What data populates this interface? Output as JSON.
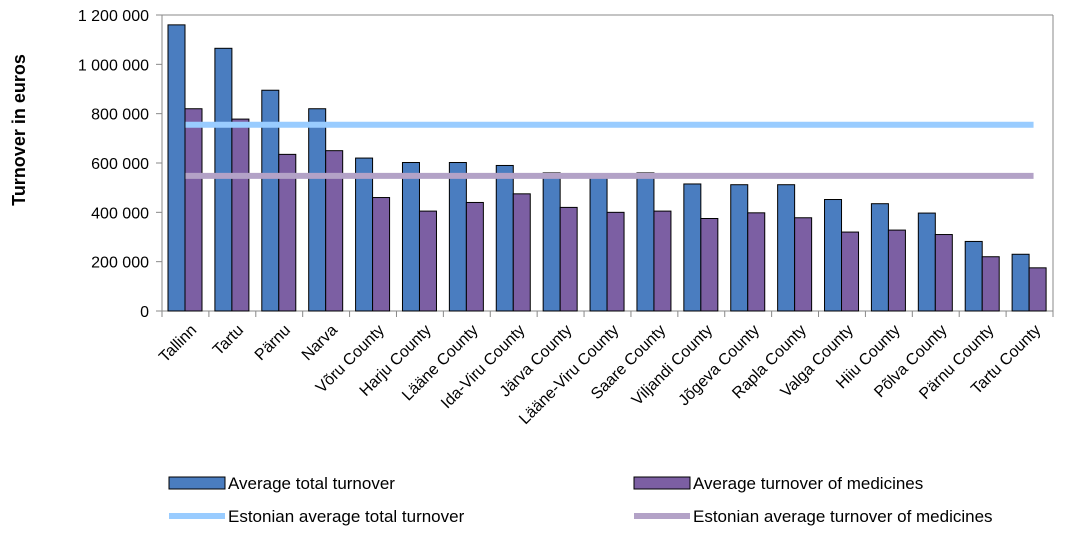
{
  "chart_data": {
    "type": "bar",
    "title": "",
    "xlabel": "",
    "ylabel": "Turnover in euros",
    "ylim": [
      0,
      1200000
    ],
    "yticks": [
      0,
      200000,
      400000,
      600000,
      800000,
      1000000,
      1200000
    ],
    "ytick_labels": [
      "0",
      "200 000",
      "400 000",
      "600 000",
      "800 000",
      "1 000 000",
      "1 200 000"
    ],
    "categories": [
      "Tallinn",
      "Tartu",
      "Pärnu",
      "Narva",
      "Võru County",
      "Harju County",
      "Lääne County",
      "Ida-Viru County",
      "Järva County",
      "Lääne-Viru County",
      "Saare County",
      "Viljandi County",
      "Jõgeva County",
      "Rapla County",
      "Valga County",
      "Hiiu County",
      "Põlva County",
      "Pärnu County",
      "Tartu County"
    ],
    "series": [
      {
        "name": "Average total turnover",
        "color": "#4a7dc0",
        "values": [
          1160000,
          1065000,
          895000,
          820000,
          620000,
          602000,
          602000,
          590000,
          560000,
          548000,
          560000,
          515000,
          512000,
          512000,
          452000,
          435000,
          397000,
          282000,
          230000
        ]
      },
      {
        "name": "Average turnover of medicines",
        "color": "#7c5fa3",
        "values": [
          820000,
          778000,
          635000,
          650000,
          460000,
          405000,
          440000,
          475000,
          420000,
          400000,
          405000,
          375000,
          398000,
          378000,
          320000,
          328000,
          310000,
          220000,
          175000
        ]
      }
    ],
    "reference_lines": [
      {
        "name": "Estonian average total turnover",
        "color": "#99ccff",
        "value": 755000
      },
      {
        "name": "Estonian average turnover of medicines",
        "color": "#b3a2c7",
        "value": 548000
      }
    ],
    "grid": false,
    "legend_position": "bottom"
  }
}
